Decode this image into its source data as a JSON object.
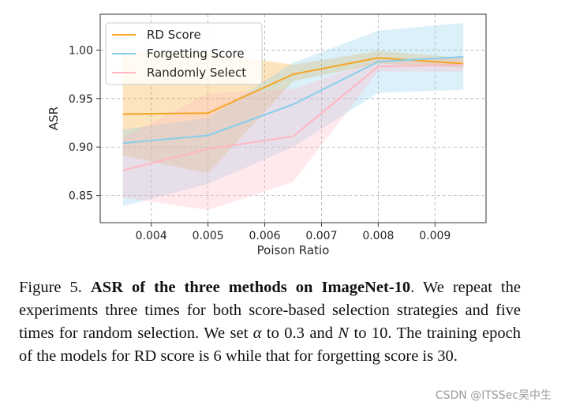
{
  "chart_data": {
    "type": "line",
    "title": "",
    "xlabel": "Poison Ratio",
    "ylabel": "ASR",
    "xlim": [
      0.0031,
      0.0099
    ],
    "ylim": [
      0.822,
      1.037
    ],
    "xticks": [
      0.004,
      0.005,
      0.006,
      0.007,
      0.008,
      0.009
    ],
    "xtick_labels": [
      "0.004",
      "0.005",
      "0.006",
      "0.007",
      "0.008",
      "0.009"
    ],
    "yticks": [
      0.85,
      0.9,
      0.95,
      1.0
    ],
    "ytick_labels": [
      "0.85",
      "0.90",
      "0.95",
      "1.00"
    ],
    "grid": true,
    "grid_style": "dashed",
    "legend_position": "top-left",
    "x": [
      0.0035,
      0.005,
      0.0065,
      0.008,
      0.0095
    ],
    "series": [
      {
        "name": "RD Score",
        "color": "#f5a623",
        "values": [
          0.934,
          0.935,
          0.975,
          0.992,
          0.986
        ],
        "upper": [
          0.997,
          0.997,
          0.985,
          0.999,
          0.992
        ],
        "lower": [
          0.891,
          0.873,
          0.968,
          0.986,
          0.982
        ]
      },
      {
        "name": "Forgetting Score",
        "color": "#87ceeb",
        "values": [
          0.904,
          0.912,
          0.944,
          0.988,
          0.993
        ],
        "upper": [
          0.918,
          0.93,
          0.987,
          1.02,
          1.028
        ],
        "lower": [
          0.839,
          0.862,
          0.9,
          0.956,
          0.959
        ]
      },
      {
        "name": "Randomly Select",
        "color": "#ffb6c1",
        "values": [
          0.876,
          0.898,
          0.911,
          0.983,
          0.985
        ],
        "upper": [
          0.91,
          0.955,
          0.96,
          0.99,
          0.992
        ],
        "lower": [
          0.848,
          0.835,
          0.864,
          0.978,
          0.978
        ]
      }
    ]
  },
  "caption": {
    "figure_label": "Figure 5.",
    "bold_title": "ASR of the three methods on ImageNet-10",
    "text_1": ". We repeat the experiments three times for both score-based selection strategies and five times for random selection. We set ",
    "alpha_symbol": "α",
    "text_2": " to 0.3 and ",
    "n_symbol": "N",
    "text_3": " to 10. The training epoch of the models for RD score is 6 while that for forgetting score is 30."
  },
  "watermark": "CSDN @ITSSec吴中生"
}
